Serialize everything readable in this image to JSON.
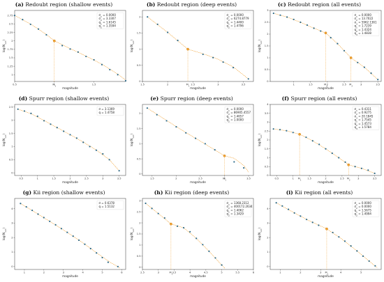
{
  "chart_data": [
    {
      "type": "scatter",
      "label": "(a)",
      "title": "Redoubt region (shallow events)",
      "xlabel": "magnitude",
      "ylabel": "log(N_{>m})",
      "xlim": [
        0.5,
        1.9
      ],
      "ylim": [
        0.8,
        2.9
      ],
      "xticks": [
        0.5,
        1.0,
        1.5,
        2.0
      ],
      "yticks": [
        1.0,
        1.25,
        1.5,
        1.75,
        2.0,
        2.25,
        2.5,
        2.75
      ],
      "extra_ticks": [
        {
          "value": 1.0,
          "label": "M_1"
        }
      ],
      "legend": [
        "σ_1 = 0.0000",
        "σ_2 = 3.3307",
        "q_1 = 1.6145",
        "q_2 = 1.3594"
      ],
      "series": [
        {
          "x": [
            0.5,
            0.6,
            0.7,
            0.8,
            0.9,
            1.0,
            1.1,
            1.2,
            1.3,
            1.4,
            1.5,
            1.6,
            1.7,
            1.8,
            1.9
          ],
          "y": [
            2.75,
            2.63,
            2.49,
            2.35,
            2.18,
            2.0,
            1.86,
            1.76,
            1.67,
            1.54,
            1.44,
            1.3,
            1.15,
            1.0,
            0.82
          ]
        }
      ],
      "fit": {
        "x": [
          0.5,
          0.7,
          0.9,
          1.0,
          1.2,
          1.4,
          1.6,
          1.8,
          1.9
        ],
        "y": [
          2.75,
          2.5,
          2.19,
          2.0,
          1.77,
          1.55,
          1.31,
          1.02,
          0.84
        ]
      },
      "breaks": [
        {
          "x": 1.0,
          "y": 2.0
        }
      ]
    },
    {
      "type": "scatter",
      "label": "(b)",
      "title": "Redoubt region (deep events)",
      "xlabel": "magnitude",
      "ylabel": "log(N_{>m})",
      "xlim": [
        1.5,
        3.7
      ],
      "ylim": [
        0.0,
        2.2
      ],
      "xticks": [
        1.5,
        2.0,
        2.5,
        3.0,
        3.5
      ],
      "yticks": [
        0.0,
        0.5,
        1.0,
        1.5,
        2.0
      ],
      "extra_ticks": [
        {
          "value": 2.4,
          "label": "M_1"
        }
      ],
      "legend": [
        "σ_1 = 0.0000",
        "σ_2 = 6274.8779",
        "q_1 = 1.4400",
        "q_2 = 1.4796"
      ],
      "series": [
        {
          "x": [
            1.6,
            1.8,
            2.0,
            2.2,
            2.4,
            2.7,
            2.9,
            3.1,
            3.3,
            3.6
          ],
          "y": [
            2.0,
            1.77,
            1.52,
            1.27,
            1.0,
            0.84,
            0.74,
            0.6,
            0.43,
            0.08
          ]
        }
      ],
      "fit": {
        "x": [
          1.6,
          1.8,
          2.0,
          2.2,
          2.4,
          2.7,
          3.0,
          3.3,
          3.6
        ],
        "y": [
          2.0,
          1.76,
          1.52,
          1.26,
          1.0,
          0.86,
          0.69,
          0.45,
          0.08
        ]
      },
      "breaks": [
        {
          "x": 2.4,
          "y": 1.0
        }
      ]
    },
    {
      "type": "scatter",
      "label": "(c)",
      "title": "Redoubt region (all events)",
      "xlabel": "magnitude",
      "ylabel": "log(N_{>m})",
      "xlim": [
        0.3,
        3.6
      ],
      "ylim": [
        0.0,
        3.0
      ],
      "xticks": [
        1.0,
        1.5,
        2.0,
        2.5,
        3.0,
        3.5
      ],
      "yticks": [
        0.0,
        0.5,
        1.0,
        1.5,
        2.0,
        2.5,
        3.0
      ],
      "extra_ticks": [
        {
          "value": 1.95,
          "label": "M_1"
        },
        {
          "value": 2.7,
          "label": "M_2"
        }
      ],
      "legend": [
        "σ_1 = 0.0000",
        "σ_2 = 13.7022",
        "σ_3 = 5962.1361",
        "q_1 = 1.7239",
        "q_2 = 1.4324",
        "q_3 = 1.4838"
      ],
      "series": [
        {
          "x": [
            0.4,
            0.6,
            0.8,
            1.0,
            1.2,
            1.4,
            1.6,
            1.8,
            1.95,
            2.1,
            2.3,
            2.5,
            2.7,
            2.9,
            3.1,
            3.3,
            3.5
          ],
          "y": [
            2.88,
            2.8,
            2.72,
            2.62,
            2.5,
            2.38,
            2.25,
            2.13,
            2.05,
            1.85,
            1.6,
            1.3,
            1.0,
            0.8,
            0.6,
            0.35,
            0.08
          ]
        }
      ],
      "fit": {
        "x": [
          0.4,
          0.8,
          1.2,
          1.6,
          1.95,
          2.3,
          2.7,
          3.1,
          3.5
        ],
        "y": [
          2.88,
          2.72,
          2.5,
          2.25,
          2.05,
          1.6,
          1.0,
          0.6,
          0.08
        ]
      },
      "breaks": [
        {
          "x": 1.95,
          "y": 2.05
        },
        {
          "x": 2.7,
          "y": 1.0
        }
      ]
    },
    {
      "type": "scatter",
      "label": "(d)",
      "title": "Spurr region (shallow events)",
      "xlabel": "magnitude",
      "ylabel": "log(N_{>m})",
      "xlim": [
        0.3,
        3.7
      ],
      "ylim": [
        -0.1,
        2.6
      ],
      "xticks": [
        0.5,
        1.0,
        1.5,
        2.0,
        2.5,
        3.0,
        3.5
      ],
      "yticks": [
        0.0,
        0.5,
        1.0,
        1.5,
        2.0,
        2.5
      ],
      "extra_ticks": [],
      "legend": [
        "σ = 3.1369",
        "q = 1.4758"
      ],
      "series": [
        {
          "x": [
            0.4,
            0.6,
            0.8,
            1.0,
            1.2,
            1.4,
            1.6,
            1.8,
            2.0,
            2.2,
            2.4,
            2.6,
            2.8,
            3.0,
            3.2,
            3.5
          ],
          "y": [
            2.42,
            2.35,
            2.26,
            2.15,
            1.98,
            1.85,
            1.72,
            1.58,
            1.45,
            1.32,
            1.16,
            1.0,
            0.86,
            0.72,
            0.5,
            0.08
          ]
        }
      ],
      "fit": {
        "x": [
          0.4,
          0.8,
          1.2,
          1.6,
          2.0,
          2.4,
          2.8,
          3.2,
          3.5
        ],
        "y": [
          2.42,
          2.25,
          1.99,
          1.72,
          1.45,
          1.17,
          0.87,
          0.5,
          0.08
        ]
      },
      "breaks": []
    },
    {
      "type": "scatter",
      "label": "(e)",
      "title": "Spurr region (deep events)",
      "xlabel": "magnitude",
      "ylabel": "log(N_{>m})",
      "xlim": [
        1.3,
        3.6
      ],
      "ylim": [
        -0.05,
        2.3
      ],
      "xticks": [
        1.5,
        2.0,
        2.5,
        3.0,
        3.5
      ],
      "yticks": [
        0.0,
        0.5,
        1.0,
        1.5,
        2.0
      ],
      "extra_ticks": [
        {
          "value": 3.0,
          "label": "M_1"
        }
      ],
      "legend": [
        "σ_1 = 0.0000",
        "σ_2 = 86905.4557",
        "q_1 = 1.4657",
        "q_2 = 1.0000"
      ],
      "series": [
        {
          "x": [
            1.4,
            1.6,
            1.8,
            2.0,
            2.2,
            2.4,
            2.6,
            2.8,
            3.0,
            3.2,
            3.4
          ],
          "y": [
            2.18,
            1.96,
            1.76,
            1.56,
            1.36,
            1.18,
            1.0,
            0.8,
            0.6,
            0.4,
            0.2
          ]
        }
      ],
      "fit": {
        "x": [
          1.4,
          1.8,
          2.2,
          2.6,
          3.0,
          3.2,
          3.4,
          3.5
        ],
        "y": [
          2.18,
          1.77,
          1.37,
          0.99,
          0.6,
          0.52,
          0.28,
          0.06
        ]
      },
      "breaks": [
        {
          "x": 3.0,
          "y": 0.6
        }
      ]
    },
    {
      "type": "scatter",
      "label": "(f)",
      "title": "Spurr region (all events)",
      "xlabel": "magnitude",
      "ylabel": "log(N_{>m})",
      "xlim": [
        0.3,
        3.7
      ],
      "ylim": [
        0.0,
        4.0
      ],
      "xticks": [
        0.5,
        1.0,
        1.5,
        2.0,
        2.5,
        3.0,
        3.5
      ],
      "yticks": [
        0.0,
        0.5,
        1.0,
        1.5,
        2.0,
        2.5,
        3.0,
        3.5,
        4.0
      ],
      "extra_ticks": [
        {
          "value": 1.2,
          "label": "M_1"
        },
        {
          "value": 2.7,
          "label": "M_2"
        }
      ],
      "legend": [
        "σ_1 = 0.4311",
        "σ_2 = 0.9275",
        "σ_3 = 20.1845",
        "q_1 = 1.7545",
        "q_2 = 1.4573",
        "q_3 = 1.5784"
      ],
      "series": [
        {
          "x": [
            0.4,
            0.6,
            0.8,
            1.0,
            1.2,
            1.4,
            1.6,
            1.8,
            2.0,
            2.2,
            2.4,
            2.6,
            2.7,
            2.9,
            3.1,
            3.3,
            3.5
          ],
          "y": [
            2.62,
            2.58,
            2.52,
            2.42,
            2.32,
            2.15,
            1.95,
            1.75,
            1.5,
            1.25,
            1.0,
            0.75,
            0.6,
            0.5,
            0.4,
            0.3,
            0.12
          ]
        }
      ],
      "fit": {
        "x": [
          0.4,
          0.8,
          1.2,
          1.6,
          2.0,
          2.4,
          2.7,
          3.1,
          3.5
        ],
        "y": [
          2.62,
          2.52,
          2.32,
          1.95,
          1.5,
          1.0,
          0.6,
          0.4,
          0.12
        ]
      },
      "breaks": [
        {
          "x": 1.2,
          "y": 2.32
        },
        {
          "x": 2.7,
          "y": 0.6
        }
      ]
    },
    {
      "type": "scatter",
      "label": "(g)",
      "title": "Kii region (shallow events)",
      "xlabel": "magnitude",
      "ylabel": "log(N_{>m})",
      "xlim": [
        0.5,
        6.2
      ],
      "ylim": [
        -0.2,
        4.7
      ],
      "xticks": [
        1,
        2,
        3,
        4,
        5,
        6
      ],
      "yticks": [
        0,
        1,
        2,
        3,
        4
      ],
      "extra_ticks": [],
      "legend": [
        "σ = 0.6378",
        "q = 1.5132"
      ],
      "series": [
        {
          "x": [
            0.8,
            1.1,
            1.4,
            1.7,
            2.0,
            2.3,
            2.6,
            2.9,
            3.2,
            3.5,
            3.8,
            4.1,
            4.4,
            4.7,
            5.0,
            5.3,
            5.8
          ],
          "y": [
            4.35,
            4.12,
            3.88,
            3.62,
            3.38,
            3.12,
            2.88,
            2.62,
            2.36,
            2.1,
            1.82,
            1.54,
            1.24,
            0.94,
            0.62,
            0.3,
            0.0
          ]
        }
      ],
      "fit": {
        "x": [
          0.8,
          1.6,
          2.4,
          3.2,
          4.0,
          4.8,
          5.4,
          5.9
        ],
        "y": [
          4.35,
          3.7,
          3.04,
          2.36,
          1.64,
          0.86,
          0.3,
          -0.1
        ]
      },
      "breaks": []
    },
    {
      "type": "scatter",
      "label": "(h)",
      "title": "Kii region (deep events)",
      "xlabel": "magnitude",
      "ylabel": "log(N_{>m})",
      "xlim": [
        2.5,
        6.0
      ],
      "ylim": [
        -0.1,
        3.1
      ],
      "xticks": [
        2.5,
        3.0,
        3.5,
        4.0,
        4.5,
        5.0,
        5.5,
        6.0
      ],
      "yticks": [
        0.0,
        0.5,
        1.0,
        1.5,
        2.0,
        2.5,
        3.0
      ],
      "extra_ticks": [
        {
          "value": 3.4,
          "label": "M_1"
        }
      ],
      "legend": [
        "σ_1 = 1368.2312",
        "σ_2 = 400172.2634",
        "q_1 = 1.4062",
        "q_2 = 1.3429"
      ],
      "series": [
        {
          "x": [
            2.6,
            2.8,
            3.0,
            3.2,
            3.4,
            3.6,
            3.8,
            4.0,
            4.2,
            4.4,
            4.6,
            4.8,
            5.0
          ],
          "y": [
            2.88,
            2.65,
            2.42,
            2.22,
            1.95,
            1.85,
            1.78,
            1.6,
            1.3,
            1.02,
            0.72,
            0.42,
            0.1
          ]
        }
      ],
      "fit": {
        "x": [
          2.6,
          3.0,
          3.4,
          3.8,
          4.2,
          4.6,
          5.0,
          5.1
        ],
        "y": [
          2.88,
          2.42,
          1.95,
          1.78,
          1.3,
          0.72,
          0.1,
          -0.05
        ]
      },
      "breaks": [
        {
          "x": 3.4,
          "y": 1.95
        }
      ]
    },
    {
      "type": "scatter",
      "label": "(i)",
      "title": "Kii region (all events)",
      "xlabel": "magnitude",
      "ylabel": "log(N_{>m})",
      "xlim": [
        0.5,
        6.0
      ],
      "ylim": [
        -0.2,
        4.7
      ],
      "xticks": [
        1,
        2,
        3,
        4,
        5
      ],
      "yticks": [
        0,
        1,
        2,
        3,
        4
      ],
      "extra_ticks": [
        {
          "value": 3.3,
          "label": "M_1"
        }
      ],
      "legend": [
        "σ_1 = 0.0000",
        "σ_2 = 0.0000",
        "q_1 = 1.5675",
        "q_2 = 1.4994"
      ],
      "series": [
        {
          "x": [
            0.8,
            1.1,
            1.4,
            1.7,
            2.0,
            2.3,
            2.6,
            2.9,
            3.3,
            3.6,
            3.9,
            4.2,
            4.5,
            4.8,
            5.1,
            5.4,
            5.7
          ],
          "y": [
            4.4,
            4.18,
            3.95,
            3.7,
            3.48,
            3.25,
            3.05,
            2.85,
            2.6,
            2.35,
            2.05,
            1.75,
            1.42,
            1.08,
            0.72,
            0.38,
            0.05
          ]
        }
      ],
      "fit": {
        "x": [
          0.8,
          1.6,
          2.4,
          3.3,
          4.0,
          4.8,
          5.4,
          5.8
        ],
        "y": [
          4.4,
          3.78,
          3.18,
          2.6,
          1.95,
          1.08,
          0.38,
          -0.08
        ]
      },
      "breaks": [
        {
          "x": 3.3,
          "y": 2.6
        }
      ]
    }
  ]
}
